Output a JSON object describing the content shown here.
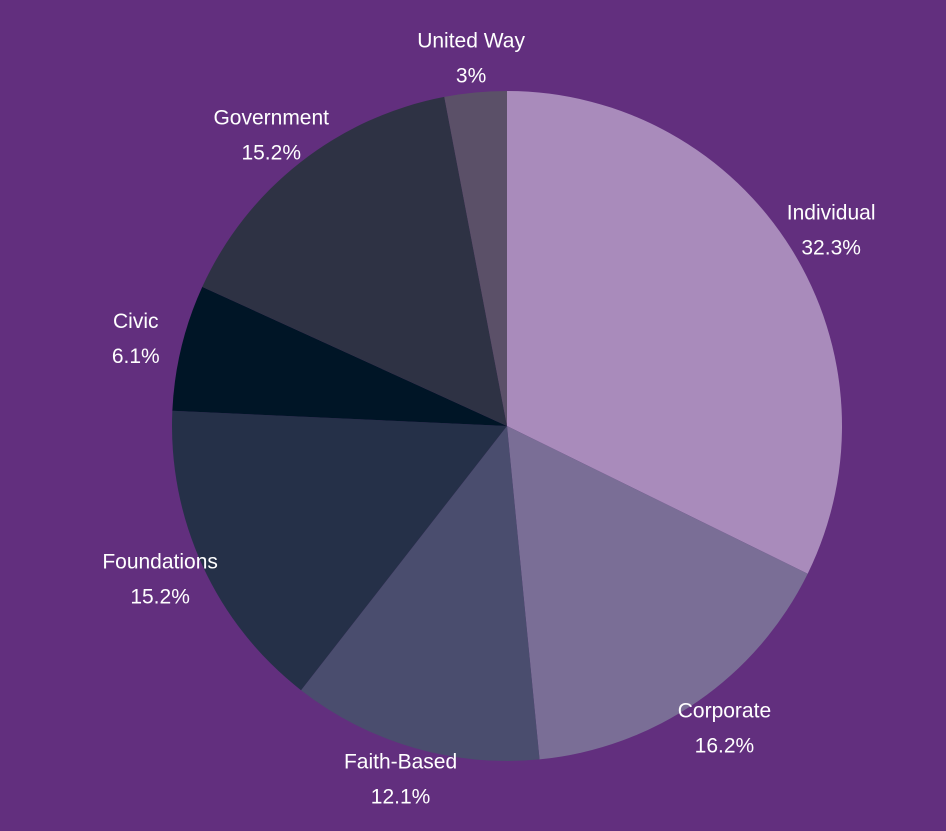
{
  "chart_data": {
    "type": "pie",
    "categories": [
      "Individual",
      "Corporate",
      "Faith-Based",
      "Foundations",
      "Civic",
      "Government",
      "United Way"
    ],
    "values": [
      32.3,
      16.2,
      12.1,
      15.2,
      6.1,
      15.2,
      3
    ],
    "value_labels": [
      "32.3%",
      "16.2%",
      "12.1%",
      "15.2%",
      "6.1%",
      "15.2%",
      "3%"
    ],
    "colors": [
      "#a98bbb",
      "#7a6e96",
      "#4a4d6e",
      "#253048",
      "#001526",
      "#2e3244",
      "#5b5068"
    ]
  }
}
